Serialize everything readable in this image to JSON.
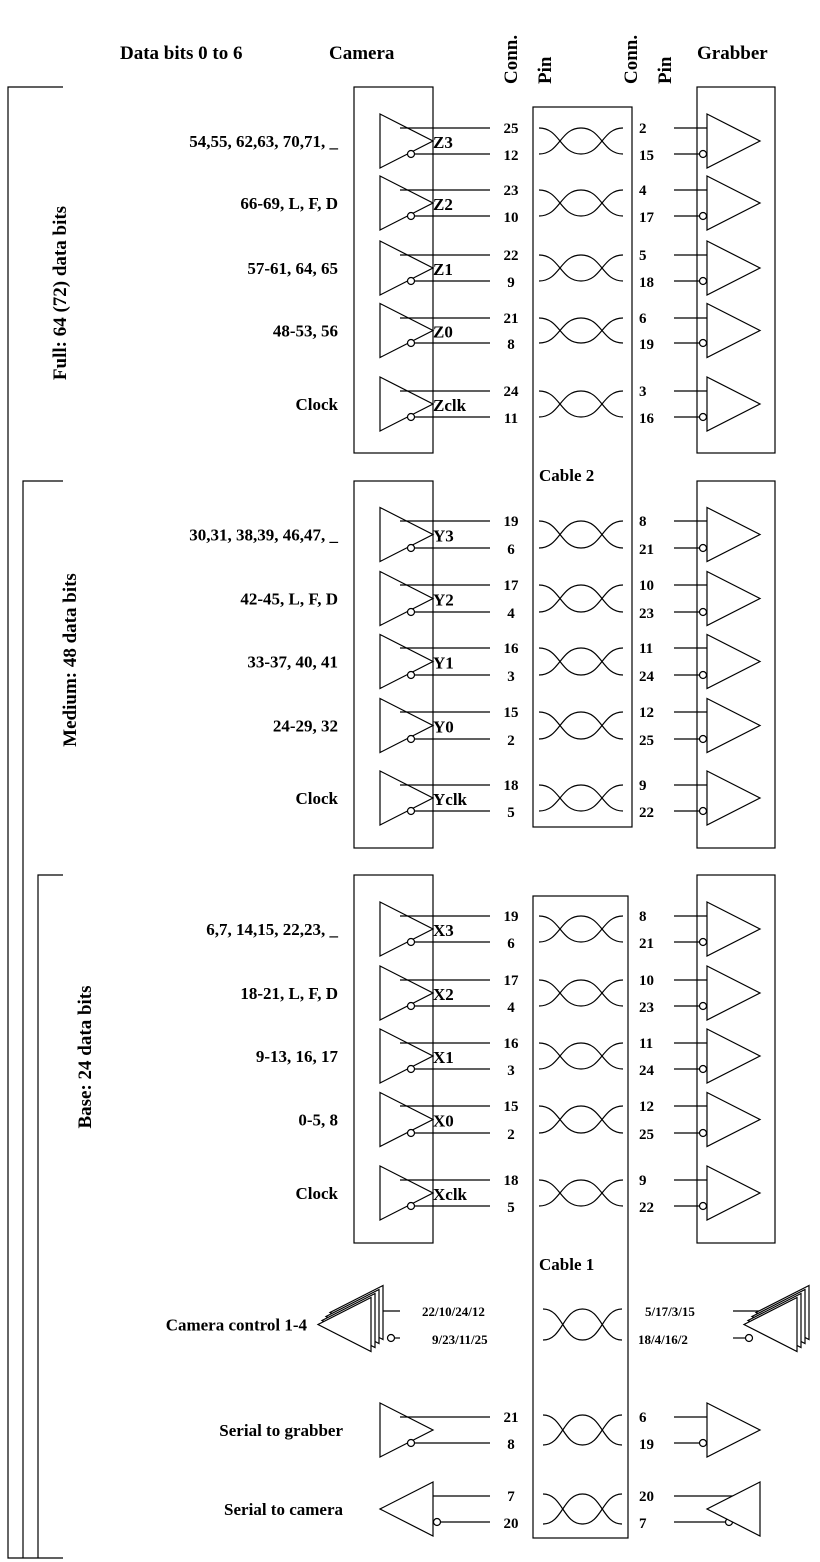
{
  "header": {
    "data_bits": "Data bits 0 to 6",
    "camera": "Camera",
    "conn_left": "Conn.",
    "pin_left": "Pin",
    "conn_right": "Conn.",
    "pin_right": "Pin",
    "grabber": "Grabber"
  },
  "brackets": {
    "full": "Full: 64 (72) data bits",
    "medium": "Medium: 48 data bits",
    "base": "Base: 24 data bits"
  },
  "cables": {
    "cable2": "Cable 2",
    "cable1": "Cable 1"
  },
  "sections": [
    {
      "id": "full",
      "rows": [
        {
          "label": "54,55, 62,63, 70,71, _",
          "signal": "Z3",
          "cam": [
            "25",
            "12"
          ],
          "grab": [
            "2",
            "15"
          ]
        },
        {
          "label": "66-69, L, F, D",
          "signal": "Z2",
          "cam": [
            "23",
            "10"
          ],
          "grab": [
            "4",
            "17"
          ]
        },
        {
          "label": "57-61, 64, 65",
          "signal": "Z1",
          "cam": [
            "22",
            "9"
          ],
          "grab": [
            "5",
            "18"
          ]
        },
        {
          "label": "48-53, 56",
          "signal": "Z0",
          "cam": [
            "21",
            "8"
          ],
          "grab": [
            "6",
            "19"
          ]
        },
        {
          "label": "Clock",
          "signal": "Zclk",
          "cam": [
            "24",
            "11"
          ],
          "grab": [
            "3",
            "16"
          ]
        }
      ]
    },
    {
      "id": "medium",
      "rows": [
        {
          "label": "30,31, 38,39, 46,47, _",
          "signal": "Y3",
          "cam": [
            "19",
            "6"
          ],
          "grab": [
            "8",
            "21"
          ]
        },
        {
          "label": "42-45, L, F, D",
          "signal": "Y2",
          "cam": [
            "17",
            "4"
          ],
          "grab": [
            "10",
            "23"
          ]
        },
        {
          "label": "33-37, 40, 41",
          "signal": "Y1",
          "cam": [
            "16",
            "3"
          ],
          "grab": [
            "11",
            "24"
          ]
        },
        {
          "label": "24-29, 32",
          "signal": "Y0",
          "cam": [
            "15",
            "2"
          ],
          "grab": [
            "12",
            "25"
          ]
        },
        {
          "label": "Clock",
          "signal": "Yclk",
          "cam": [
            "18",
            "5"
          ],
          "grab": [
            "9",
            "22"
          ]
        }
      ]
    },
    {
      "id": "base",
      "rows": [
        {
          "label": "6,7, 14,15, 22,23, _",
          "signal": "X3",
          "cam": [
            "19",
            "6"
          ],
          "grab": [
            "8",
            "21"
          ]
        },
        {
          "label": "18-21, L, F, D",
          "signal": "X2",
          "cam": [
            "17",
            "4"
          ],
          "grab": [
            "10",
            "23"
          ]
        },
        {
          "label": "9-13, 16, 17",
          "signal": "X1",
          "cam": [
            "16",
            "3"
          ],
          "grab": [
            "11",
            "24"
          ]
        },
        {
          "label": "0-5, 8",
          "signal": "X0",
          "cam": [
            "15",
            "2"
          ],
          "grab": [
            "12",
            "25"
          ]
        },
        {
          "label": "Clock",
          "signal": "Xclk",
          "cam": [
            "18",
            "5"
          ],
          "grab": [
            "9",
            "22"
          ]
        }
      ]
    }
  ],
  "extras": [
    {
      "label": "Camera control 1-4",
      "cam": [
        "22/10/24/12",
        "9/23/11/25"
      ],
      "grab": [
        "5/17/3/15",
        "18/4/16/2"
      ],
      "direction": "grabber-to-camera-stacked"
    },
    {
      "label": "Serial to grabber",
      "cam": [
        "21",
        "8"
      ],
      "grab": [
        "6",
        "19"
      ],
      "direction": "camera-to-grabber"
    },
    {
      "label": "Serial to camera",
      "cam": [
        "7",
        "20"
      ],
      "grab": [
        "20",
        "7"
      ],
      "direction": "grabber-to-camera"
    }
  ]
}
